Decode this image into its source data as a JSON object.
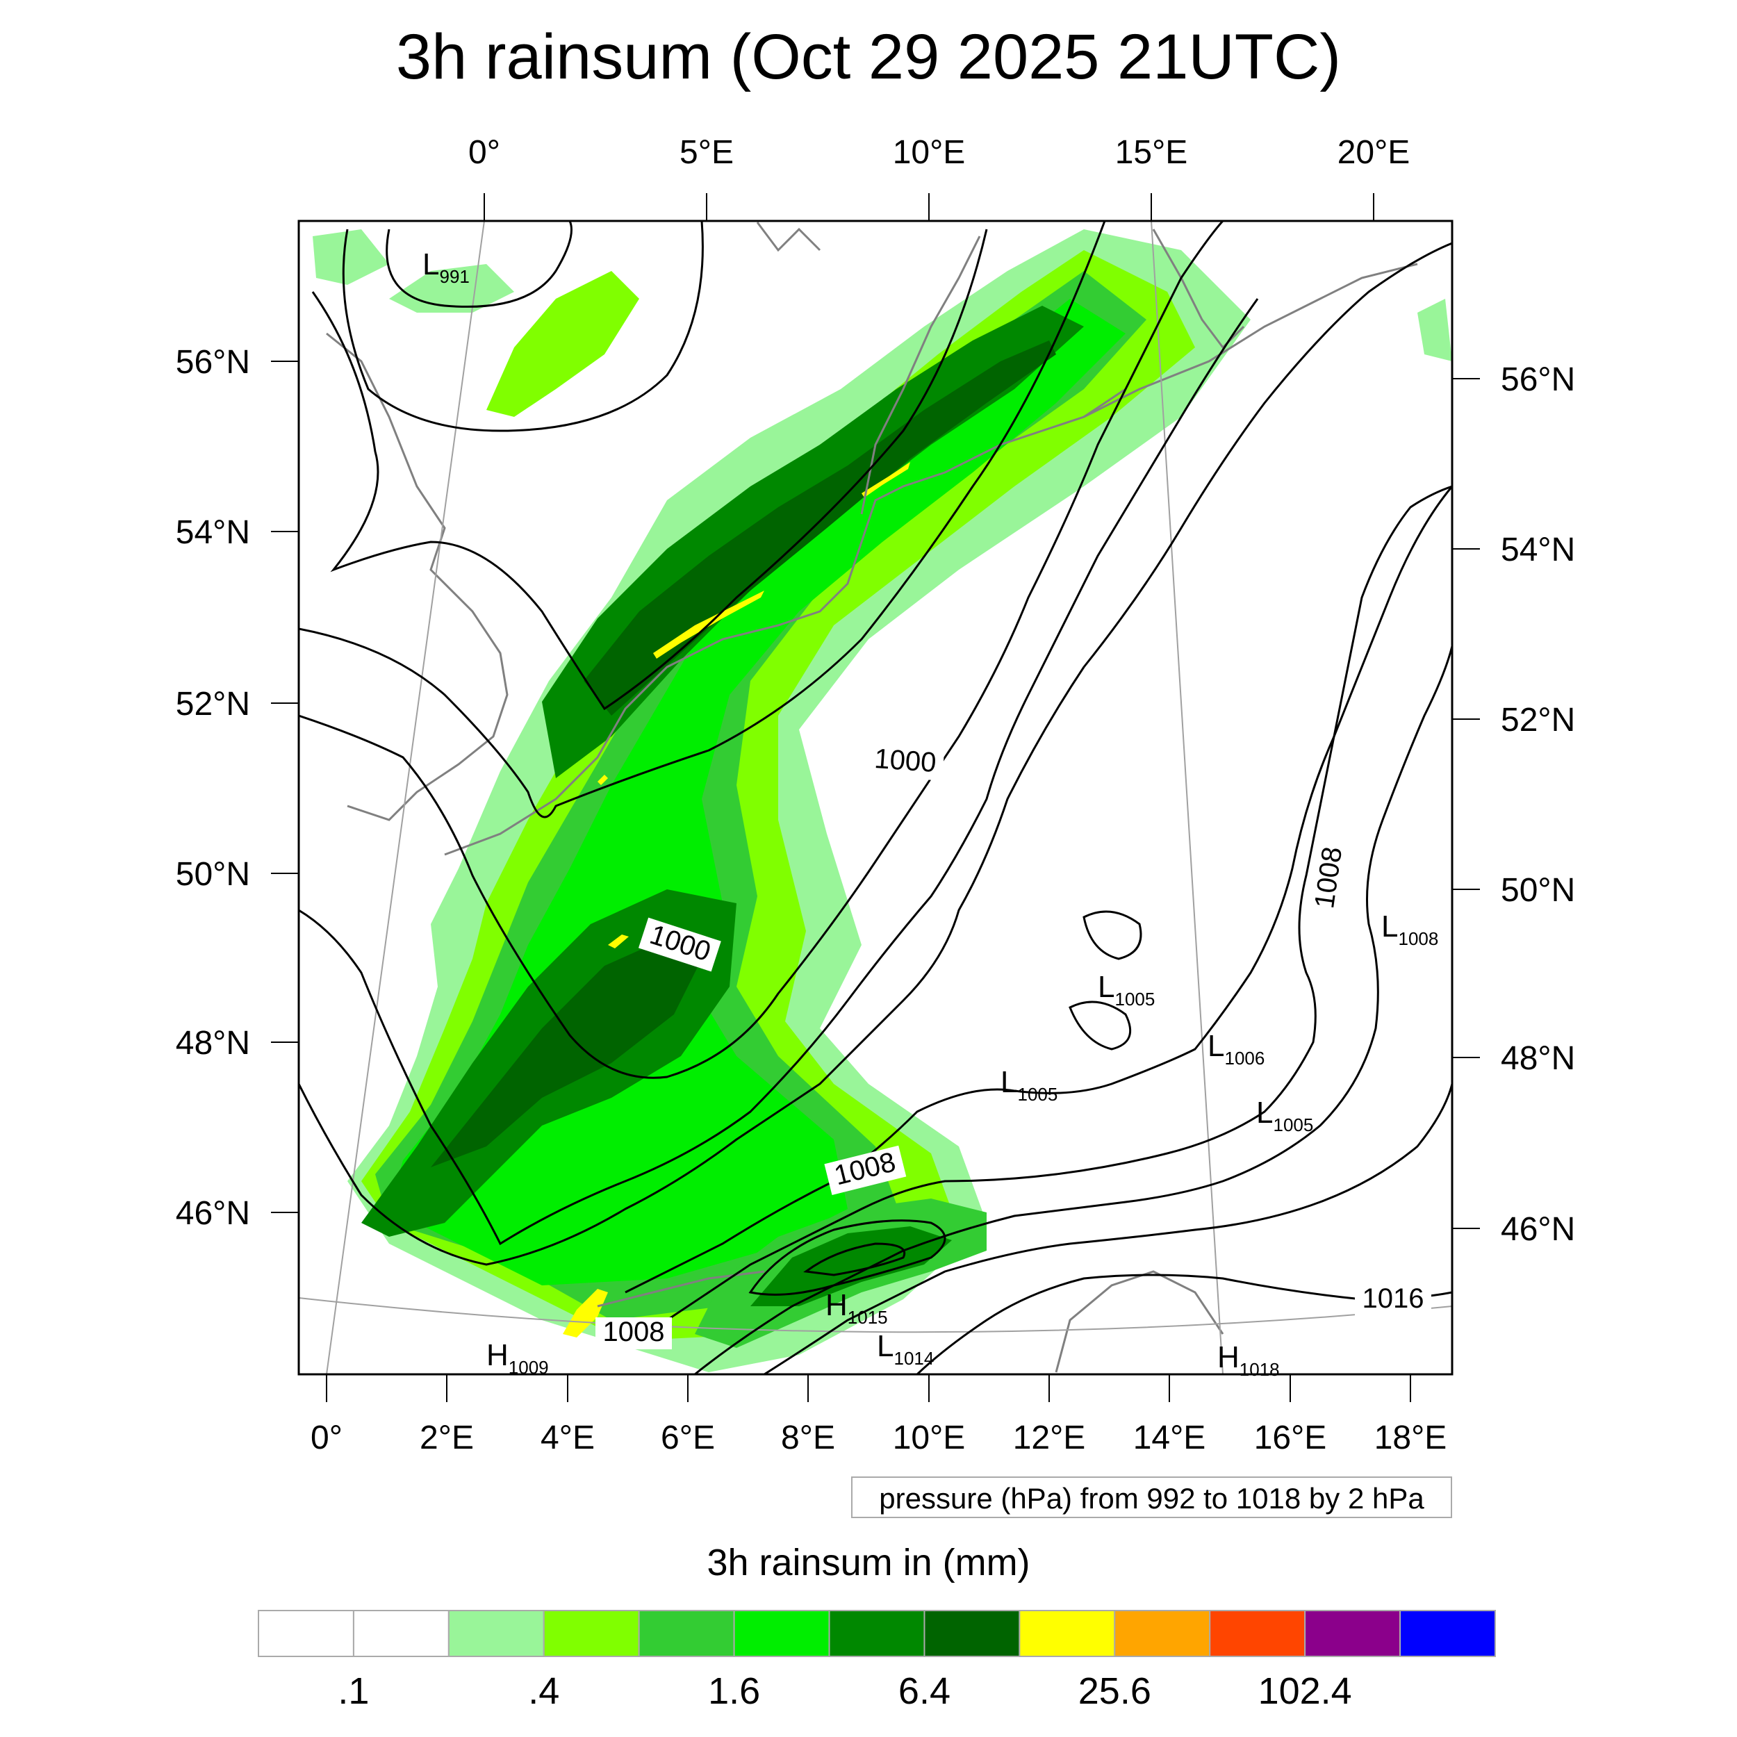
{
  "title": "3h rainsum (Oct 29 2025 21UTC)",
  "top_lon_labels": [
    "0°",
    "5°E",
    "10°E",
    "15°E",
    "20°E"
  ],
  "bottom_lon_labels": [
    "0°",
    "2°E",
    "4°E",
    "6°E",
    "8°E",
    "10°E",
    "12°E",
    "14°E",
    "16°E",
    "18°E"
  ],
  "left_lat_labels": [
    "56°N",
    "54°N",
    "52°N",
    "50°N",
    "48°N",
    "46°N"
  ],
  "right_lat_labels": [
    "56°N",
    "54°N",
    "52°N",
    "50°N",
    "48°N",
    "46°N"
  ],
  "contour_labels": [
    "1000",
    "1000",
    "1008",
    "1008",
    "1008",
    "1016"
  ],
  "pressure_centers": [
    {
      "kind": "L",
      "value": "991"
    },
    {
      "kind": "L",
      "value": "1008"
    },
    {
      "kind": "L",
      "value": "1005"
    },
    {
      "kind": "L",
      "value": "1006"
    },
    {
      "kind": "L",
      "value": "1005"
    },
    {
      "kind": "L",
      "value": "1005"
    },
    {
      "kind": "H",
      "value": "1015"
    },
    {
      "kind": "L",
      "value": "1014"
    },
    {
      "kind": "H",
      "value": "1009"
    },
    {
      "kind": "H",
      "value": "1018"
    }
  ],
  "contour_info": "pressure (hPa) from 992 to 1018 by 2 hPa",
  "colorbar": {
    "title": "3h rainsum in (mm)",
    "colors": [
      "#ffffff",
      "#ffffff",
      "#99f599",
      "#80ff00",
      "#33cc33",
      "#00ee00",
      "#008800",
      "#006400",
      "#ffff00",
      "#ffa500",
      "#ff4500",
      "#8b008b",
      "#0000ff"
    ],
    "labels": [
      ".1",
      ".4",
      "1.6",
      "6.4",
      "25.6",
      "102.4"
    ]
  },
  "colors": {
    "coast": "#808080",
    "isobar": "#000000",
    "graticule": "#a0a0a0"
  }
}
